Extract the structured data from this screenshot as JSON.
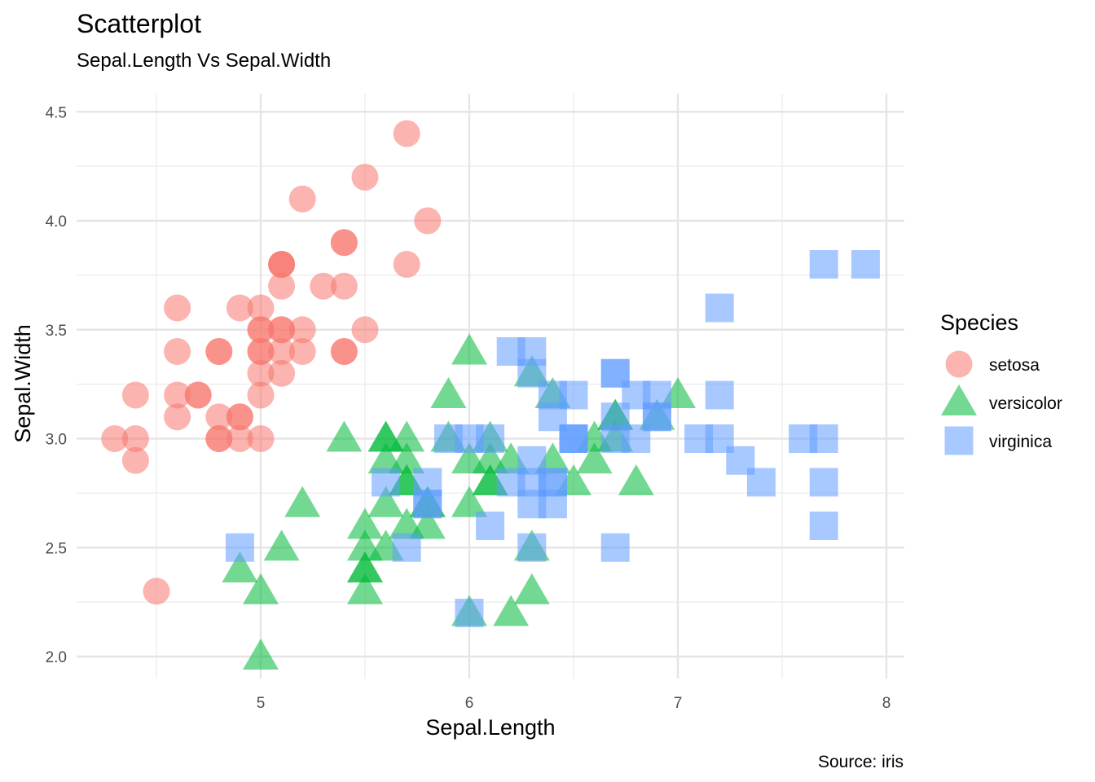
{
  "chart_data": {
    "type": "scatter",
    "title": "Scatterplot",
    "subtitle": "Sepal.Length Vs Sepal.Width",
    "xlabel": "Sepal.Length",
    "ylabel": "Sepal.Width",
    "caption": "Source: iris",
    "xlim": [
      4.2,
      8.08
    ],
    "ylim": [
      1.88,
      4.52
    ],
    "x_ticks": [
      5,
      6,
      7,
      8
    ],
    "x_tick_labels": [
      "5",
      "6",
      "7",
      "8"
    ],
    "y_ticks": [
      2.0,
      2.5,
      3.0,
      3.5,
      4.0,
      4.5
    ],
    "y_tick_labels": [
      "2.0",
      "2.5",
      "3.0",
      "3.5",
      "4.0",
      "4.5"
    ],
    "legend": {
      "title": "Species",
      "position": "right"
    },
    "series": [
      {
        "name": "setosa",
        "shape": "circle",
        "color": "#F8766D",
        "points": [
          [
            5.1,
            3.5
          ],
          [
            4.9,
            3.0
          ],
          [
            4.7,
            3.2
          ],
          [
            4.6,
            3.1
          ],
          [
            5.0,
            3.6
          ],
          [
            5.4,
            3.9
          ],
          [
            4.6,
            3.4
          ],
          [
            5.0,
            3.4
          ],
          [
            4.4,
            2.9
          ],
          [
            4.9,
            3.1
          ],
          [
            5.4,
            3.7
          ],
          [
            4.8,
            3.4
          ],
          [
            4.8,
            3.0
          ],
          [
            4.3,
            3.0
          ],
          [
            5.8,
            4.0
          ],
          [
            5.7,
            4.4
          ],
          [
            5.4,
            3.9
          ],
          [
            5.1,
            3.5
          ],
          [
            5.7,
            3.8
          ],
          [
            5.1,
            3.8
          ],
          [
            5.4,
            3.4
          ],
          [
            5.1,
            3.7
          ],
          [
            4.6,
            3.6
          ],
          [
            5.1,
            3.3
          ],
          [
            4.8,
            3.4
          ],
          [
            5.0,
            3.0
          ],
          [
            5.0,
            3.4
          ],
          [
            5.2,
            3.5
          ],
          [
            5.2,
            3.4
          ],
          [
            4.7,
            3.2
          ],
          [
            4.8,
            3.1
          ],
          [
            5.4,
            3.4
          ],
          [
            5.2,
            4.1
          ],
          [
            5.5,
            4.2
          ],
          [
            4.9,
            3.1
          ],
          [
            5.0,
            3.2
          ],
          [
            5.5,
            3.5
          ],
          [
            4.9,
            3.6
          ],
          [
            4.4,
            3.0
          ],
          [
            5.1,
            3.4
          ],
          [
            5.0,
            3.5
          ],
          [
            4.5,
            2.3
          ],
          [
            4.4,
            3.2
          ],
          [
            5.0,
            3.5
          ],
          [
            5.1,
            3.8
          ],
          [
            4.8,
            3.0
          ],
          [
            5.1,
            3.8
          ],
          [
            4.6,
            3.2
          ],
          [
            5.3,
            3.7
          ],
          [
            5.0,
            3.3
          ]
        ]
      },
      {
        "name": "versicolor",
        "shape": "triangle",
        "color": "#00BA38",
        "points": [
          [
            7.0,
            3.2
          ],
          [
            6.4,
            3.2
          ],
          [
            6.9,
            3.1
          ],
          [
            5.5,
            2.3
          ],
          [
            6.5,
            2.8
          ],
          [
            5.7,
            2.8
          ],
          [
            6.3,
            3.3
          ],
          [
            4.9,
            2.4
          ],
          [
            6.6,
            2.9
          ],
          [
            5.2,
            2.7
          ],
          [
            5.0,
            2.0
          ],
          [
            5.9,
            3.0
          ],
          [
            6.0,
            2.2
          ],
          [
            6.1,
            2.9
          ],
          [
            5.6,
            2.9
          ],
          [
            6.7,
            3.1
          ],
          [
            5.6,
            3.0
          ],
          [
            5.8,
            2.7
          ],
          [
            6.2,
            2.2
          ],
          [
            5.6,
            2.5
          ],
          [
            5.9,
            3.2
          ],
          [
            6.1,
            2.8
          ],
          [
            6.3,
            2.5
          ],
          [
            6.1,
            2.8
          ],
          [
            6.4,
            2.9
          ],
          [
            6.6,
            3.0
          ],
          [
            6.8,
            2.8
          ],
          [
            6.7,
            3.0
          ],
          [
            6.0,
            2.9
          ],
          [
            5.7,
            2.6
          ],
          [
            5.5,
            2.4
          ],
          [
            5.5,
            2.4
          ],
          [
            5.8,
            2.7
          ],
          [
            6.0,
            2.7
          ],
          [
            5.4,
            3.0
          ],
          [
            6.0,
            3.4
          ],
          [
            6.7,
            3.1
          ],
          [
            6.3,
            2.3
          ],
          [
            5.6,
            3.0
          ],
          [
            5.5,
            2.5
          ],
          [
            5.5,
            2.6
          ],
          [
            6.1,
            3.0
          ],
          [
            5.8,
            2.6
          ],
          [
            5.0,
            2.3
          ],
          [
            5.6,
            2.7
          ],
          [
            5.7,
            3.0
          ],
          [
            5.7,
            2.9
          ],
          [
            6.2,
            2.9
          ],
          [
            5.1,
            2.5
          ],
          [
            5.7,
            2.8
          ]
        ]
      },
      {
        "name": "virginica",
        "shape": "square",
        "color": "#619CFF",
        "points": [
          [
            6.3,
            3.3
          ],
          [
            5.8,
            2.7
          ],
          [
            7.1,
            3.0
          ],
          [
            6.3,
            2.9
          ],
          [
            6.5,
            3.0
          ],
          [
            7.6,
            3.0
          ],
          [
            4.9,
            2.5
          ],
          [
            7.3,
            2.9
          ],
          [
            6.7,
            2.5
          ],
          [
            7.2,
            3.6
          ],
          [
            6.5,
            3.2
          ],
          [
            6.4,
            2.7
          ],
          [
            6.8,
            3.0
          ],
          [
            5.7,
            2.5
          ],
          [
            5.8,
            2.8
          ],
          [
            6.4,
            3.2
          ],
          [
            6.5,
            3.0
          ],
          [
            7.7,
            3.8
          ],
          [
            7.7,
            2.6
          ],
          [
            6.0,
            2.2
          ],
          [
            6.9,
            3.2
          ],
          [
            5.6,
            2.8
          ],
          [
            7.7,
            2.8
          ],
          [
            6.3,
            2.7
          ],
          [
            6.7,
            3.3
          ],
          [
            7.2,
            3.2
          ],
          [
            6.2,
            2.8
          ],
          [
            6.1,
            3.0
          ],
          [
            6.4,
            2.8
          ],
          [
            7.2,
            3.0
          ],
          [
            7.4,
            2.8
          ],
          [
            7.9,
            3.8
          ],
          [
            6.4,
            2.8
          ],
          [
            6.3,
            2.8
          ],
          [
            6.1,
            2.6
          ],
          [
            7.7,
            3.0
          ],
          [
            6.3,
            3.4
          ],
          [
            6.4,
            3.1
          ],
          [
            6.0,
            3.0
          ],
          [
            6.9,
            3.1
          ],
          [
            6.7,
            3.1
          ],
          [
            6.9,
            3.1
          ],
          [
            5.8,
            2.7
          ],
          [
            6.8,
            3.2
          ],
          [
            6.7,
            3.3
          ],
          [
            6.7,
            3.0
          ],
          [
            6.3,
            2.5
          ],
          [
            6.5,
            3.0
          ],
          [
            6.2,
            3.4
          ],
          [
            5.9,
            3.0
          ]
        ]
      }
    ]
  }
}
